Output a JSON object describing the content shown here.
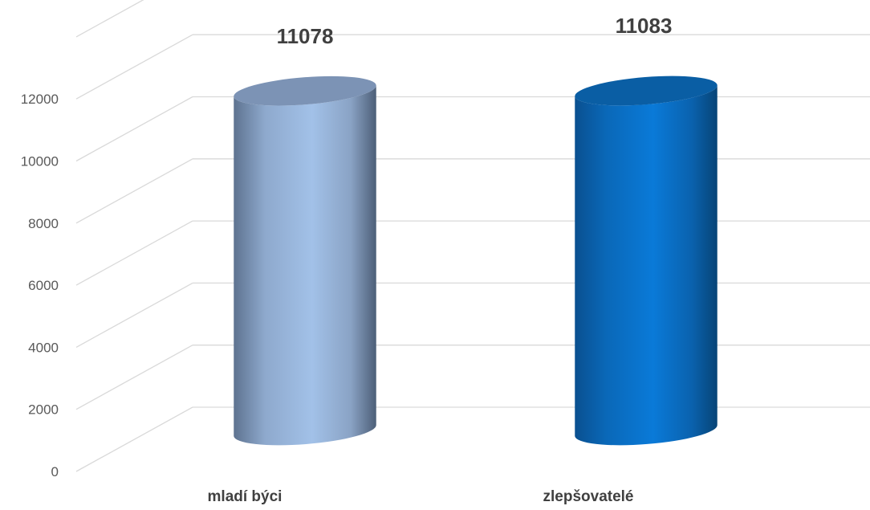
{
  "chart_data": {
    "type": "bar",
    "style": "3d-cylinder",
    "categories": [
      "mladí býci",
      "zlepšovatelé"
    ],
    "values": [
      11078,
      11083
    ],
    "data_labels": [
      "11078",
      "11083"
    ],
    "ylim": [
      0,
      12000
    ],
    "yticks": [
      "0",
      "2000",
      "4000",
      "6000",
      "8000",
      "10000",
      "12000"
    ],
    "grid": true,
    "legend": "none",
    "colors": [
      "#9dbde6",
      "#0a72c8"
    ]
  }
}
